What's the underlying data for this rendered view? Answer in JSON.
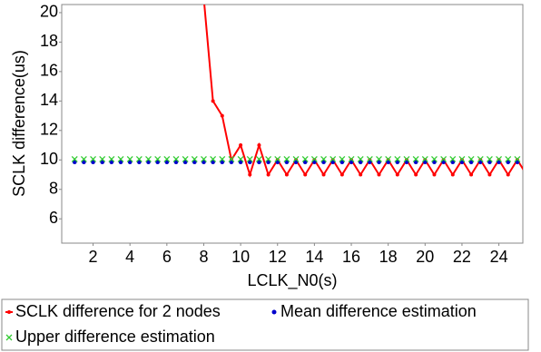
{
  "chart_data": {
    "type": "line",
    "xlabel": "LCLK_N0(s)",
    "ylabel": "SCLK difference(us)",
    "xlim": [
      0.3,
      25.3
    ],
    "ylim": [
      4.35,
      20.55
    ],
    "xticks": [
      2,
      4,
      6,
      8,
      10,
      12,
      14,
      16,
      18,
      20,
      22,
      24
    ],
    "yticks": [
      6,
      8,
      10,
      12,
      14,
      16,
      18,
      20
    ],
    "series": [
      {
        "name": "SCLK difference for 2 nodes",
        "color": "#ff0000",
        "marker": "line",
        "x": [
          8,
          8.5,
          9,
          9.5,
          10,
          10.5,
          11,
          11.5,
          12,
          12.5,
          13,
          13.5,
          14,
          14.5,
          15,
          15.5,
          16,
          16.5,
          17,
          17.5,
          18,
          18.5,
          19,
          19.5,
          20,
          20.5,
          21,
          21.5,
          22,
          22.5,
          23,
          23.5,
          24,
          24.5,
          25,
          25.5
        ],
        "values": [
          21,
          14,
          13,
          10,
          11,
          9,
          11,
          9,
          10,
          9,
          10,
          9,
          10,
          9,
          10,
          9,
          10,
          9,
          10,
          9,
          10,
          9,
          10,
          9,
          10,
          9,
          10,
          9,
          10,
          9,
          10,
          9,
          10,
          9,
          10,
          9
        ]
      },
      {
        "name": "Mean difference estimation",
        "color": "#0000cc",
        "marker": "dot",
        "x": [
          1,
          1.5,
          2,
          2.5,
          3,
          3.5,
          4,
          4.5,
          5,
          5.5,
          6,
          6.5,
          7,
          7.5,
          8,
          8.5,
          9,
          9.5,
          10,
          10.5,
          11,
          11.5,
          12,
          12.5,
          13,
          13.5,
          14,
          14.5,
          15,
          15.5,
          16,
          16.5,
          17,
          17.5,
          18,
          18.5,
          19,
          19.5,
          20,
          20.5,
          21,
          21.5,
          22,
          22.5,
          23,
          23.5,
          24,
          24.5,
          25
        ],
        "values": [
          9.85,
          9.85,
          9.85,
          9.85,
          9.85,
          9.85,
          9.85,
          9.85,
          9.85,
          9.85,
          9.85,
          9.85,
          9.85,
          9.85,
          9.85,
          9.85,
          9.85,
          9.85,
          9.85,
          9.85,
          9.85,
          9.85,
          9.85,
          9.85,
          9.85,
          9.85,
          9.85,
          9.85,
          9.85,
          9.85,
          9.85,
          9.85,
          9.85,
          9.85,
          9.85,
          9.85,
          9.85,
          9.85,
          9.85,
          9.85,
          9.85,
          9.85,
          9.85,
          9.85,
          9.85,
          9.85,
          9.85,
          9.85,
          9.85
        ]
      },
      {
        "name": "Upper difference estimation",
        "color": "#33cc33",
        "marker": "cross",
        "x": [
          1,
          1.5,
          2,
          2.5,
          3,
          3.5,
          4,
          4.5,
          5,
          5.5,
          6,
          6.5,
          7,
          7.5,
          8,
          8.5,
          9,
          9.5,
          10,
          10.5,
          11,
          11.5,
          12,
          12.5,
          13,
          13.5,
          14,
          14.5,
          15,
          15.5,
          16,
          16.5,
          17,
          17.5,
          18,
          18.5,
          19,
          19.5,
          20,
          20.5,
          21,
          21.5,
          22,
          22.5,
          23,
          23.5,
          24,
          24.5,
          25
        ],
        "values": [
          10.05,
          10.05,
          10.05,
          10.05,
          10.05,
          10.05,
          10.05,
          10.05,
          10.05,
          10.05,
          10.05,
          10.05,
          10.05,
          10.05,
          10.05,
          10.05,
          10.05,
          10.05,
          10.05,
          10.05,
          10.05,
          10.05,
          10.05,
          10.05,
          10.05,
          10.05,
          10.05,
          10.05,
          10.05,
          10.05,
          10.05,
          10.05,
          10.05,
          10.05,
          10.05,
          10.05,
          10.05,
          10.05,
          10.05,
          10.05,
          10.05,
          10.05,
          10.05,
          10.05,
          10.05,
          10.05,
          10.05,
          10.05,
          10.05
        ]
      }
    ]
  }
}
